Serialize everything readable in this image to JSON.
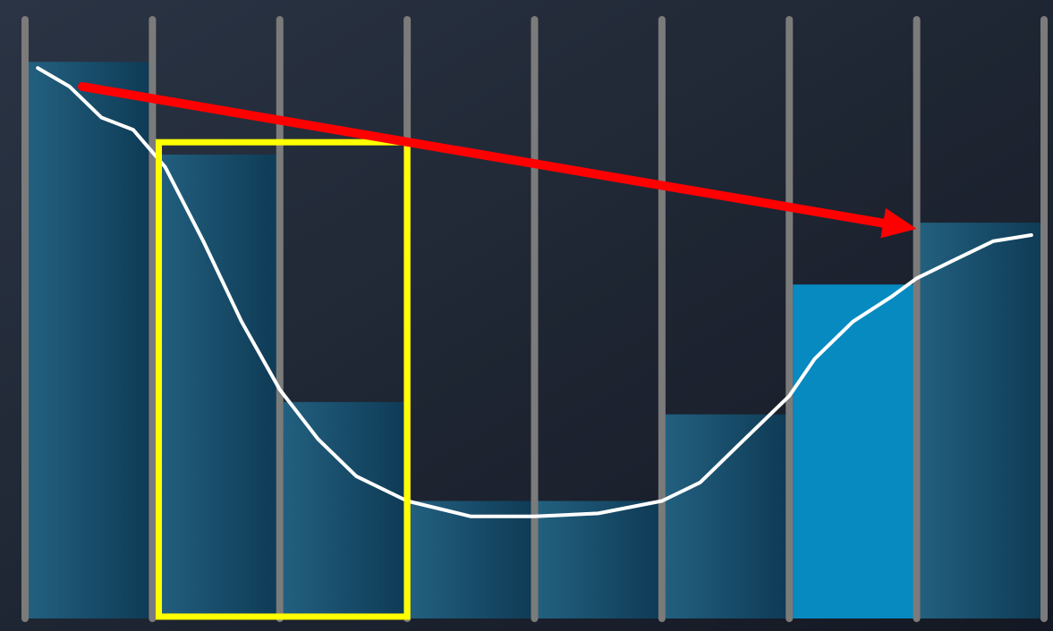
{
  "chart_data": {
    "type": "bar",
    "title": "",
    "xlabel": "",
    "ylabel": "",
    "ylim": [
      0,
      100
    ],
    "grid": true,
    "legend": "none",
    "categories": [
      "",
      "",
      "",
      "",
      "",
      "",
      "",
      ""
    ],
    "series": [
      {
        "values": [
          90,
          75,
          35,
          19,
          19,
          33,
          54,
          64
        ],
        "highlight_index": 6
      }
    ],
    "curve": {
      "x": [
        0.1,
        0.35,
        0.6,
        0.85,
        1.1,
        1.4,
        1.7,
        2.0,
        2.3,
        2.6,
        3.0,
        3.5,
        4.0,
        4.5,
        5.0,
        5.3,
        5.6,
        6.0,
        6.2,
        6.5,
        6.8,
        7.0,
        7.3,
        7.6,
        7.9
      ],
      "y": [
        89,
        86,
        81,
        79,
        73,
        61,
        48,
        37,
        29,
        23,
        19,
        16.5,
        16.5,
        17,
        19,
        22,
        28,
        36,
        42,
        48,
        52,
        55,
        58,
        61,
        62
      ]
    },
    "annotations": {
      "arrow": {
        "from": [
          0.45,
          86
        ],
        "to": [
          7.0,
          63
        ],
        "color": "#ff0000"
      },
      "highlight_box": {
        "x_from": 1.05,
        "x_to": 3.0,
        "y_from": 0.3,
        "y_to": 77,
        "color": "#ffff00"
      }
    },
    "colors": {
      "background": "#1f2633",
      "bar": "#1e5a7c",
      "bar_highlight": "#078ac0",
      "gridline": "#7b7b7b",
      "curve": "#ffffff"
    }
  }
}
